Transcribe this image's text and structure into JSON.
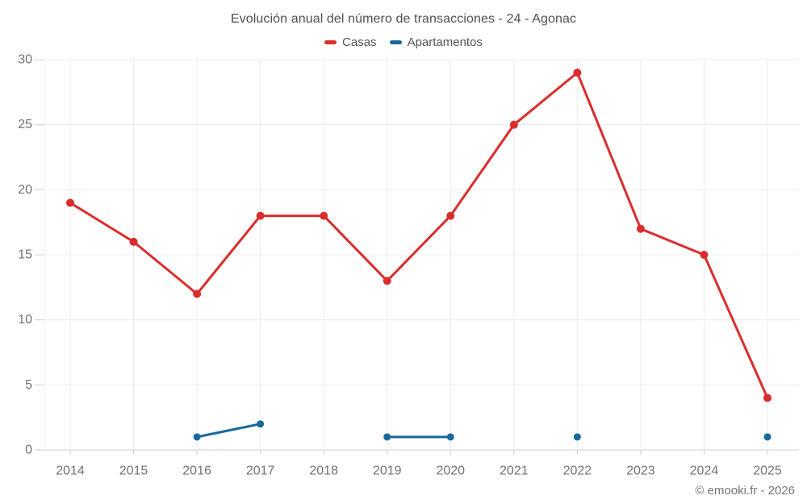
{
  "footer": {
    "text": "© emooki.fr - 2026"
  },
  "colors": {
    "casas": "#dc2c2c",
    "apartamentos": "#17699c",
    "grid": "#ececec",
    "axis": "#cfcfcf",
    "tick_text": "#737373",
    "title_text": "#4f4f4f"
  },
  "chart_data": {
    "type": "line",
    "title": "Evolución anual del número de transacciones - 24 - Agonac",
    "categories": [
      "2014",
      "2015",
      "2016",
      "2017",
      "2018",
      "2019",
      "2020",
      "2021",
      "2022",
      "2023",
      "2024",
      "2025"
    ],
    "series": [
      {
        "name": "Casas",
        "color": "#dc2c2c",
        "marker_radius": 5,
        "line_width": 3,
        "values": [
          19,
          16,
          12,
          18,
          18,
          13,
          18,
          25,
          29,
          17,
          15,
          4
        ]
      },
      {
        "name": "Apartamentos",
        "color": "#17699c",
        "marker_radius": 4.5,
        "line_width": 3,
        "values": [
          null,
          null,
          1,
          2,
          null,
          1,
          1,
          null,
          1,
          null,
          null,
          1
        ]
      }
    ],
    "xlabel": "",
    "ylabel": "",
    "ylim": [
      0,
      30
    ],
    "yticks": [
      0,
      5,
      10,
      15,
      20,
      25,
      30
    ],
    "grid": true,
    "legend_position": "top"
  }
}
